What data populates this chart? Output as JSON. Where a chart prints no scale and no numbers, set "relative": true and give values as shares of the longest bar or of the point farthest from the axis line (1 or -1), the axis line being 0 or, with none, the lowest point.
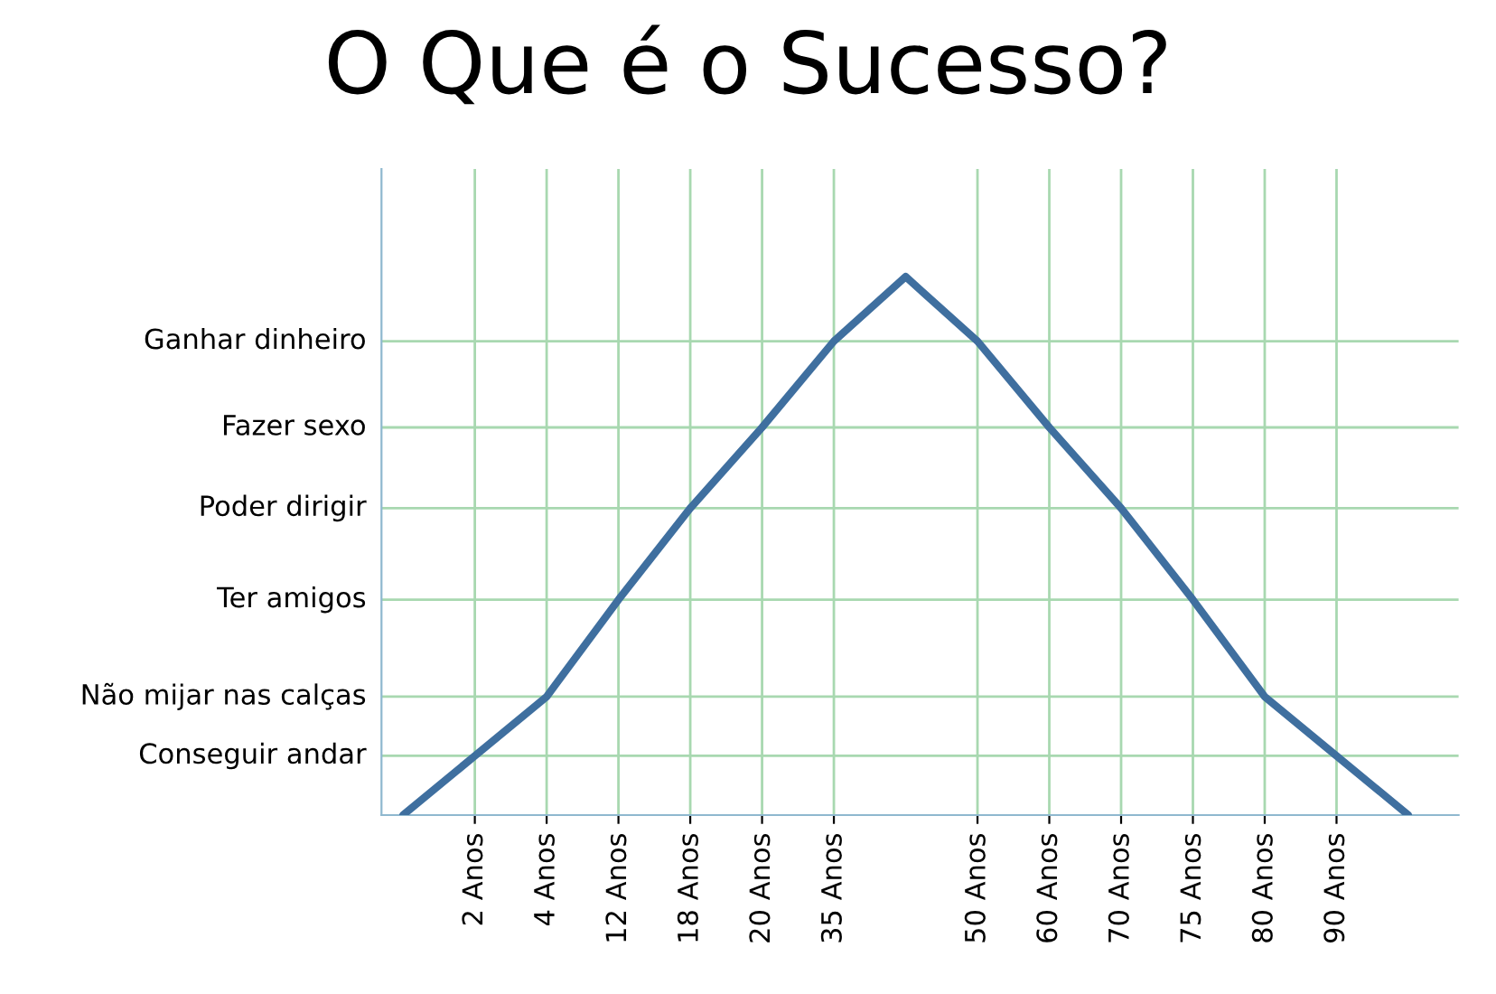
{
  "chart_data": {
    "type": "line",
    "title": "O Que é o Sucesso?",
    "relative": true,
    "categories": [
      null,
      "2 Anos",
      "4 Anos",
      "12 Anos",
      "18 Anos",
      "20 Anos",
      "35 Anos",
      null,
      "50 Anos",
      "60 Anos",
      "70 Anos",
      "75 Anos",
      "80 Anos",
      "90 Anos",
      null
    ],
    "series": [
      {
        "color": "#3f6f9f",
        "values": [
          0,
          0.11,
          0.22,
          0.4,
          0.57,
          0.72,
          0.88,
          1,
          0.88,
          0.72,
          0.57,
          0.4,
          0.22,
          0.11,
          0
        ]
      }
    ],
    "ref_lines": [
      {
        "axis": "y",
        "value": 0.11,
        "label": "Conseguir andar",
        "color": "#a8d8b0"
      },
      {
        "axis": "y",
        "value": 0.22,
        "label": "Não mijar nas calças",
        "color": "#a8d8b0"
      },
      {
        "axis": "y",
        "value": 0.4,
        "label": "Ter amigos",
        "color": "#a8d8b0"
      },
      {
        "axis": "y",
        "value": 0.57,
        "label": "Poder dirigir",
        "color": "#a8d8b0"
      },
      {
        "axis": "y",
        "value": 0.72,
        "label": "Fazer sexo",
        "color": "#a8d8b0"
      },
      {
        "axis": "y",
        "value": 0.88,
        "label": "Ganhar dinheiro",
        "color": "#a8d8b0"
      }
    ],
    "grid": "x",
    "marker": "none",
    "line_style": "solid"
  }
}
